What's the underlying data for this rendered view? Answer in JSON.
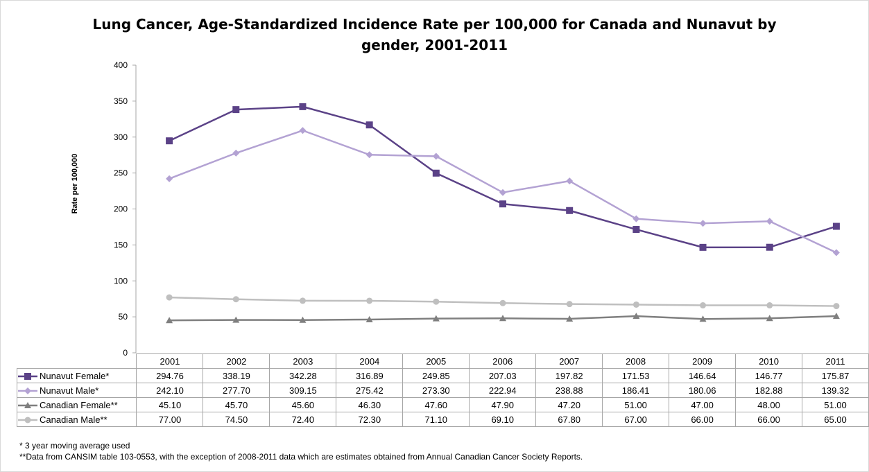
{
  "chart_data": {
    "type": "line",
    "title_lines": [
      "Lung Cancer, Age-Standardized Incidence Rate per 100,000 for Canada and Nunavut by",
      "gender, 2001-2011"
    ],
    "xlabel": "",
    "ylabel": "Rate per 100,000",
    "ylim": [
      0,
      400
    ],
    "yticks": [
      0,
      50,
      100,
      150,
      200,
      250,
      300,
      350,
      400
    ],
    "categories": [
      "2001",
      "2002",
      "2003",
      "2004",
      "2005",
      "2006",
      "2007",
      "2008",
      "2009",
      "2010",
      "2011"
    ],
    "series": [
      {
        "name": "Nunavut Female*",
        "color": "#5b4287",
        "marker": "square",
        "values": [
          294.76,
          338.19,
          342.28,
          316.89,
          249.85,
          207.03,
          197.82,
          171.53,
          146.64,
          146.77,
          175.87
        ],
        "labels": [
          "294.76",
          "338.19",
          "342.28",
          "316.89",
          "249.85",
          "207.03",
          "197.82",
          "171.53",
          "146.64",
          "146.77",
          "175.87"
        ]
      },
      {
        "name": "Nunavut Male*",
        "color": "#b3a2d3",
        "marker": "diamond",
        "values": [
          242.1,
          277.7,
          309.15,
          275.42,
          273.3,
          222.94,
          238.88,
          186.41,
          180.06,
          182.88,
          139.32
        ],
        "labels": [
          "242.10",
          "277.70",
          "309.15",
          "275.42",
          "273.30",
          "222.94",
          "238.88",
          "186.41",
          "180.06",
          "182.88",
          "139.32"
        ]
      },
      {
        "name": "Canadian Female**",
        "color": "#7f7f7f",
        "marker": "triangle",
        "values": [
          45.1,
          45.7,
          45.6,
          46.3,
          47.6,
          47.9,
          47.2,
          51.0,
          47.0,
          48.0,
          51.0
        ],
        "labels": [
          "45.10",
          "45.70",
          "45.60",
          "46.30",
          "47.60",
          "47.90",
          "47.20",
          "51.00",
          "47.00",
          "48.00",
          "51.00"
        ]
      },
      {
        "name": "Canadian Male**",
        "color": "#bfbfbf",
        "marker": "circle",
        "values": [
          77.0,
          74.5,
          72.4,
          72.3,
          71.1,
          69.1,
          67.8,
          67.0,
          66.0,
          66.0,
          65.0
        ],
        "labels": [
          "77.00",
          "74.50",
          "72.40",
          "72.30",
          "71.10",
          "69.10",
          "67.80",
          "67.00",
          "66.00",
          "66.00",
          "65.00"
        ]
      }
    ],
    "grid": false,
    "legend": "data-table"
  },
  "footnotes": [
    "* 3 year moving average used",
    "**Data from CANSIM table 103-0553, with the exception of 2008-2011 data which are estimates obtained from Annual Canadian Cancer Society Reports."
  ]
}
